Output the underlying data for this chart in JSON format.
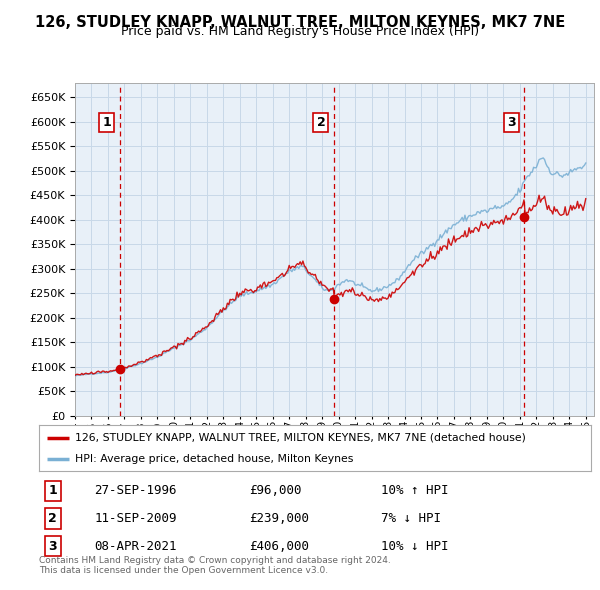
{
  "title": "126, STUDLEY KNAPP, WALNUT TREE, MILTON KEYNES, MK7 7NE",
  "subtitle": "Price paid vs. HM Land Registry's House Price Index (HPI)",
  "ylim": [
    0,
    680000
  ],
  "yticks": [
    0,
    50000,
    100000,
    150000,
    200000,
    250000,
    300000,
    350000,
    400000,
    450000,
    500000,
    550000,
    600000,
    650000
  ],
  "xlim_start": 1994.0,
  "xlim_end": 2025.5,
  "sale_dates": [
    1996.73,
    2009.73,
    2021.27
  ],
  "sale_prices": [
    96000,
    239000,
    406000
  ],
  "sale_labels": [
    "1",
    "2",
    "3"
  ],
  "vline_color": "#cc0000",
  "legend_line1": "126, STUDLEY KNAPP, WALNUT TREE, MILTON KEYNES, MK7 7NE (detached house)",
  "legend_line2": "HPI: Average price, detached house, Milton Keynes",
  "table_rows": [
    [
      "1",
      "27-SEP-1996",
      "£96,000",
      "10% ↑ HPI"
    ],
    [
      "2",
      "11-SEP-2009",
      "£239,000",
      "7% ↓ HPI"
    ],
    [
      "3",
      "08-APR-2021",
      "£406,000",
      "10% ↓ HPI"
    ]
  ],
  "footnote": "Contains HM Land Registry data © Crown copyright and database right 2024.\nThis data is licensed under the Open Government Licence v3.0.",
  "red_line_color": "#cc0000",
  "blue_line_color": "#7ab0d4",
  "background_color": "#ffffff",
  "grid_color": "#c8d8e8",
  "plot_bg_color": "#e8f0f8"
}
